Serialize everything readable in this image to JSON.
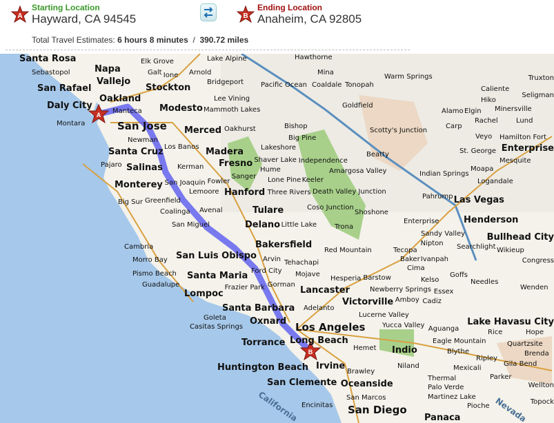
{
  "header": {
    "start": {
      "label": "Starting Location",
      "address": "Hayward, CA 94545",
      "marker": "A",
      "color": "#3a9a2a"
    },
    "end": {
      "label": "Ending Location",
      "address": "Anaheim, CA 92805",
      "marker": "B",
      "color": "#a01010"
    },
    "swap_icon": "swap-arrows-icon",
    "estimate_label": "Total Travel Estimates:",
    "duration": "6 hours 8 minutes",
    "separator": "/",
    "distance": "390.72 miles"
  },
  "map": {
    "route_color": "#5050f0",
    "ocean_color": "#a6c8ea",
    "labels": [
      "Santa Rosa",
      "Sebastopol",
      "Napa",
      "Vallejo",
      "San Rafael",
      "Oakland",
      "Daly City",
      "Montara",
      "Manteca",
      "San Jose",
      "Stockton",
      "Modesto",
      "Elk Grove",
      "Galt",
      "Ione",
      "Arnold",
      "Lake Alpine",
      "Bridgeport",
      "Lee Vining",
      "Mammoth Lakes",
      "Merced",
      "Oakhurst",
      "Newman",
      "Los Banos",
      "Santa Cruz",
      "Madera",
      "Fresno",
      "Pajaro",
      "Salinas",
      "Kerman",
      "Monterey",
      "San Joaquin",
      "Fowler",
      "Sanger",
      "Hanford",
      "Lemoore",
      "Big Sur",
      "Greenfield",
      "Coalinga",
      "Avenal",
      "Tulare",
      "San Miguel",
      "Delano",
      "Cambria",
      "Morro Bay",
      "San Luis Obispo",
      "Pismo Beach",
      "Guadalupe",
      "Santa Maria",
      "Lompoc",
      "Bakersfield",
      "Arvin",
      "Tehachapi",
      "Ford City",
      "Frazier Park",
      "Gorman",
      "Santa Barbara",
      "Goleta",
      "Casitas Springs",
      "Oxnard",
      "Los Angeles",
      "Torrance",
      "Long Beach",
      "Huntington Beach",
      "Irvine",
      "San Clemente",
      "Oceanside",
      "Encinitas",
      "San Marcos",
      "San Diego",
      "Lancaster",
      "Mojave",
      "Victorville",
      "Hesperia",
      "Adelanto",
      "Lucerne Valley",
      "Hemet",
      "Indio",
      "Mina",
      "Hawthorne",
      "Coaldale",
      "Tonopah",
      "Warm Springs",
      "Goldfield",
      "Bishop",
      "Big Pine",
      "Lakeshore",
      "Shaver Lake",
      "Hume",
      "Independence",
      "Lone Pine",
      "Three Rivers",
      "Little Lake",
      "Coso Junction",
      "Keeler",
      "Scotty's Junction",
      "Beatty",
      "Amargosa Valley",
      "Death Valley Junction",
      "Shoshone",
      "Trona",
      "Red Mountain",
      "Tecopa",
      "Pahrump",
      "Enterprise",
      "Sandy Valley",
      "Las Vegas",
      "Henderson",
      "Indian Springs",
      "Mesquite",
      "Logandale",
      "Moapa",
      "Nipton",
      "Searchlight",
      "Baker",
      "Cima",
      "Ivanpah",
      "Kelso",
      "Goffs",
      "Needles",
      "Bullhead City",
      "Barstow",
      "Newberry Springs",
      "Amboy",
      "Cadiz",
      "Essex",
      "Lake Havasu City",
      "Yucca Valley",
      "Eagle Mountain",
      "Blythe",
      "Parker",
      "Rice",
      "Ripley",
      "Thermal",
      "Aguanga",
      "Niland",
      "Brawley",
      "Palo Verde",
      "Martinez Lake",
      "Mexicali",
      "Pioche",
      "Panaca",
      "Caliente",
      "Hiko",
      "Rachel",
      "Alamo",
      "Elgin",
      "Carp",
      "Veyo",
      "St. George",
      "Hamilton Fort",
      "Enterprise",
      "Minersville",
      "Lund",
      "Truxton",
      "Seligman",
      "Wikieup",
      "Congress",
      "Wenden",
      "Hope",
      "Brenda",
      "Quartzsite",
      "Gila Bend",
      "Wellton",
      "Topock",
      "Nevada",
      "California",
      "Pacific Ocean"
    ]
  }
}
